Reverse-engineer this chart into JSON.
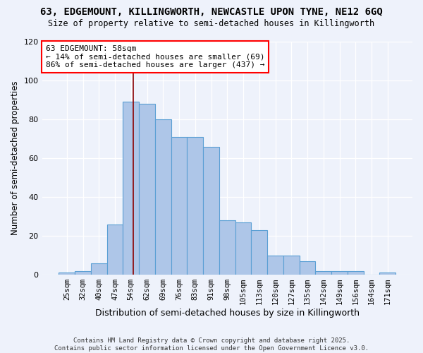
{
  "title_line1": "63, EDGEMOUNT, KILLINGWORTH, NEWCASTLE UPON TYNE, NE12 6GQ",
  "title_line2": "Size of property relative to semi-detached houses in Killingworth",
  "xlabel": "Distribution of semi-detached houses by size in Killingworth",
  "ylabel": "Number of semi-detached properties",
  "categories": [
    "25sqm",
    "32sqm",
    "40sqm",
    "47sqm",
    "54sqm",
    "62sqm",
    "69sqm",
    "76sqm",
    "83sqm",
    "91sqm",
    "98sqm",
    "105sqm",
    "113sqm",
    "120sqm",
    "127sqm",
    "135sqm",
    "142sqm",
    "149sqm",
    "156sqm",
    "164sqm",
    "171sqm"
  ],
  "values": [
    1,
    2,
    6,
    26,
    89,
    88,
    80,
    71,
    71,
    66,
    28,
    27,
    23,
    10,
    10,
    7,
    2,
    2,
    2,
    0,
    1
  ],
  "bar_color": "#aec6e8",
  "bar_edge_color": "#5a9fd4",
  "background_color": "#eef2fb",
  "ylim": [
    0,
    120
  ],
  "yticks": [
    0,
    20,
    40,
    60,
    80,
    100,
    120
  ],
  "property_label": "63 EDGEMOUNT: 58sqm",
  "pct_smaller": 14,
  "n_smaller": 69,
  "pct_larger": 86,
  "n_larger": 437,
  "vline_index": 4.14,
  "footer_line1": "Contains HM Land Registry data © Crown copyright and database right 2025.",
  "footer_line2": "Contains public sector information licensed under the Open Government Licence v3.0."
}
